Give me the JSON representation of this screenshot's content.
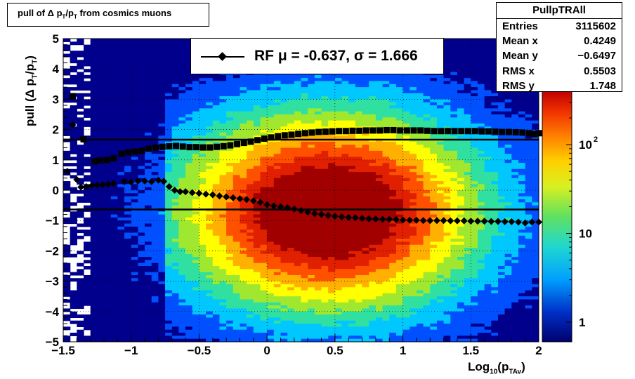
{
  "title": {
    "prefix": "pull of ",
    "delta": "Δ",
    "p": " p",
    "sub1": "T",
    "slash": "/p",
    "sub2": "T",
    "suffix": " from cosmics muons"
  },
  "stats": {
    "name": "PullpTRAll",
    "rows": [
      {
        "label": "Entries",
        "value": "3115602"
      },
      {
        "label": "Mean x",
        "value": "0.4249"
      },
      {
        "label": "Mean y",
        "value": "−0.6497"
      },
      {
        "label": "RMS x",
        "value": "0.5503"
      },
      {
        "label": "RMS y",
        "value": "1.748"
      }
    ]
  },
  "legend": {
    "text": "RF μ = -0.637, σ =   1.666"
  },
  "colors": {
    "marker": "#000000",
    "hist_scale": [
      "#00008c",
      "#0050ff",
      "#00c8ff",
      "#30e0a0",
      "#a0e830",
      "#ffff00",
      "#ffb000",
      "#ff5000",
      "#e02000",
      "#a00000"
    ]
  },
  "chart_data": {
    "type": "heatmap",
    "xlabel": {
      "base": "Log",
      "sub": "10",
      "open": "(p",
      "subsub": "TAv",
      "close": ")"
    },
    "ylabel": {
      "text": "pull (Δ p",
      "sub1": "T",
      "mid": "/p",
      "sub2": "T",
      "close": ")"
    },
    "xlim": [
      -1.5,
      2.0
    ],
    "ylim": [
      -5,
      5
    ],
    "xticks": [
      {
        "value": -1.5,
        "label": "−1.5"
      },
      {
        "value": -1.0,
        "label": "−1"
      },
      {
        "value": -0.5,
        "label": "−0.5"
      },
      {
        "value": 0,
        "label": "0"
      },
      {
        "value": 0.5,
        "label": "0.5"
      },
      {
        "value": 1.0,
        "label": "1"
      },
      {
        "value": 1.5,
        "label": "1.5"
      },
      {
        "value": 2.0,
        "label": "2"
      }
    ],
    "yticks": [
      {
        "value": 5,
        "label": "5"
      },
      {
        "value": 4,
        "label": "4"
      },
      {
        "value": 3,
        "label": "3"
      },
      {
        "value": 2,
        "label": "2"
      },
      {
        "value": 1,
        "label": "1"
      },
      {
        "value": 0,
        "label": "0"
      },
      {
        "value": -1,
        "label": "−1"
      },
      {
        "value": -2,
        "label": "−2"
      },
      {
        "value": -3,
        "label": "−3"
      },
      {
        "value": -4,
        "label": "−4"
      },
      {
        "value": -5,
        "label": "−5"
      }
    ],
    "colorbar": {
      "log": true,
      "range": [
        0.6,
        400
      ],
      "ticks": [
        {
          "value": 1,
          "label": "1"
        },
        {
          "value": 10,
          "label": "10"
        },
        {
          "value": 100,
          "label": "10",
          "sup": "2"
        }
      ]
    },
    "hlines": [
      1.666,
      -0.637
    ],
    "grid": true,
    "mean_series": [
      [
        -1.47,
        0.62
      ],
      [
        -1.43,
        2.15
      ],
      [
        -1.4,
        0.35
      ],
      [
        -1.37,
        0.1
      ],
      [
        -1.33,
        0.12
      ],
      [
        -1.29,
        0.15
      ],
      [
        -1.25,
        0.17
      ],
      [
        -1.21,
        0.18
      ],
      [
        -1.17,
        0.2
      ],
      [
        -1.13,
        0.22
      ],
      [
        -1.05,
        0.28
      ],
      [
        -1.0,
        0.27
      ],
      [
        -0.95,
        0.3
      ],
      [
        -0.9,
        0.3
      ],
      [
        -0.85,
        0.28
      ],
      [
        -0.8,
        0.33
      ],
      [
        -0.76,
        0.29
      ],
      [
        -0.72,
        0.12
      ],
      [
        -0.68,
        0.0
      ],
      [
        -0.64,
        -0.05
      ],
      [
        -0.6,
        -0.05
      ],
      [
        -0.55,
        -0.08
      ],
      [
        -0.5,
        -0.1
      ],
      [
        -0.45,
        -0.13
      ],
      [
        -0.4,
        -0.15
      ],
      [
        -0.35,
        -0.19
      ],
      [
        -0.3,
        -0.22
      ],
      [
        -0.25,
        -0.25
      ],
      [
        -0.2,
        -0.28
      ],
      [
        -0.15,
        -0.31
      ],
      [
        -0.1,
        -0.35
      ],
      [
        -0.05,
        -0.4
      ],
      [
        0.0,
        -0.48
      ],
      [
        0.05,
        -0.52
      ],
      [
        0.1,
        -0.55
      ],
      [
        0.15,
        -0.58
      ],
      [
        0.2,
        -0.62
      ],
      [
        0.25,
        -0.67
      ],
      [
        0.3,
        -0.72
      ],
      [
        0.35,
        -0.77
      ],
      [
        0.4,
        -0.8
      ],
      [
        0.45,
        -0.83
      ],
      [
        0.5,
        -0.86
      ],
      [
        0.55,
        -0.88
      ],
      [
        0.6,
        -0.9
      ],
      [
        0.65,
        -0.91
      ],
      [
        0.7,
        -0.93
      ],
      [
        0.75,
        -0.94
      ],
      [
        0.8,
        -0.95
      ],
      [
        0.85,
        -0.96
      ],
      [
        0.9,
        -0.96
      ],
      [
        0.95,
        -0.97
      ],
      [
        1.0,
        -0.98
      ],
      [
        1.05,
        -0.99
      ],
      [
        1.1,
        -0.99
      ],
      [
        1.15,
        -1.0
      ],
      [
        1.2,
        -1.0
      ],
      [
        1.25,
        -1.0
      ],
      [
        1.3,
        -1.0
      ],
      [
        1.35,
        -1.01
      ],
      [
        1.4,
        -1.01
      ],
      [
        1.45,
        -1.01
      ],
      [
        1.5,
        -1.02
      ],
      [
        1.55,
        -1.02
      ],
      [
        1.6,
        -1.02
      ],
      [
        1.65,
        -1.03
      ],
      [
        1.7,
        -1.03
      ],
      [
        1.75,
        -1.04
      ],
      [
        1.8,
        -1.04
      ],
      [
        1.85,
        -1.05
      ],
      [
        1.9,
        -1.08
      ],
      [
        1.95,
        -1.05
      ],
      [
        2.0,
        -1.05
      ]
    ],
    "rms_series": [
      [
        -1.43,
        3.1
      ],
      [
        -1.35,
        1.68
      ],
      [
        -1.27,
        0.95
      ],
      [
        -1.23,
        0.98
      ],
      [
        -1.18,
        1.0
      ],
      [
        -1.13,
        1.05
      ],
      [
        -1.07,
        1.2
      ],
      [
        -1.02,
        1.25
      ],
      [
        -0.97,
        1.27
      ],
      [
        -0.92,
        1.3
      ],
      [
        -0.87,
        1.37
      ],
      [
        -0.82,
        1.4
      ],
      [
        -0.77,
        1.43
      ],
      [
        -0.72,
        1.45
      ],
      [
        -0.67,
        1.46
      ],
      [
        -0.62,
        1.44
      ],
      [
        -0.57,
        1.42
      ],
      [
        -0.52,
        1.42
      ],
      [
        -0.47,
        1.41
      ],
      [
        -0.42,
        1.41
      ],
      [
        -0.37,
        1.43
      ],
      [
        -0.32,
        1.45
      ],
      [
        -0.27,
        1.48
      ],
      [
        -0.22,
        1.52
      ],
      [
        -0.17,
        1.56
      ],
      [
        -0.12,
        1.6
      ],
      [
        -0.07,
        1.65
      ],
      [
        -0.02,
        1.7
      ],
      [
        0.03,
        1.74
      ],
      [
        0.08,
        1.78
      ],
      [
        0.13,
        1.81
      ],
      [
        0.18,
        1.83
      ],
      [
        0.23,
        1.86
      ],
      [
        0.28,
        1.88
      ],
      [
        0.33,
        1.9
      ],
      [
        0.38,
        1.92
      ],
      [
        0.43,
        1.93
      ],
      [
        0.48,
        1.94
      ],
      [
        0.53,
        1.95
      ],
      [
        0.58,
        1.95
      ],
      [
        0.63,
        1.96
      ],
      [
        0.68,
        1.96
      ],
      [
        0.73,
        1.97
      ],
      [
        0.78,
        1.97
      ],
      [
        0.83,
        1.97
      ],
      [
        0.88,
        1.98
      ],
      [
        0.93,
        1.98
      ],
      [
        0.98,
        1.97
      ],
      [
        1.03,
        1.97
      ],
      [
        1.08,
        1.97
      ],
      [
        1.13,
        1.97
      ],
      [
        1.18,
        1.96
      ],
      [
        1.23,
        1.95
      ],
      [
        1.28,
        1.95
      ],
      [
        1.33,
        1.95
      ],
      [
        1.38,
        1.95
      ],
      [
        1.43,
        1.95
      ],
      [
        1.48,
        1.95
      ],
      [
        1.53,
        1.95
      ],
      [
        1.58,
        1.94
      ],
      [
        1.63,
        1.94
      ],
      [
        1.68,
        1.93
      ],
      [
        1.73,
        1.92
      ],
      [
        1.78,
        1.92
      ],
      [
        1.83,
        1.91
      ],
      [
        1.88,
        1.9
      ],
      [
        1.93,
        1.88
      ],
      [
        1.97,
        1.85
      ],
      [
        2.0,
        1.88
      ]
    ]
  }
}
